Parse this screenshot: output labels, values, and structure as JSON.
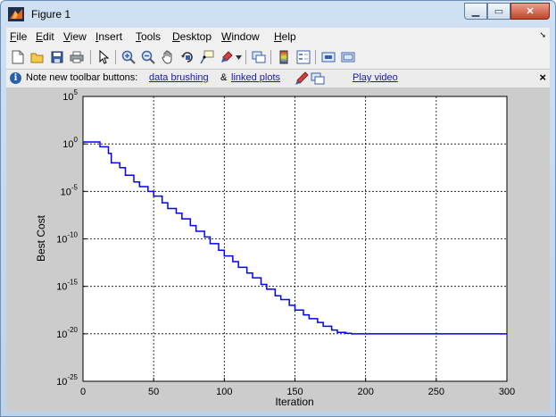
{
  "window": {
    "title": "Figure 1",
    "controls": {
      "minimize_icon": "minimize-icon",
      "maximize_icon": "maximize-icon",
      "close_icon": "close-icon"
    }
  },
  "menubar": {
    "items": [
      {
        "label": "File",
        "underline": "F",
        "rest": "ile"
      },
      {
        "label": "Edit",
        "underline": "E",
        "rest": "dit"
      },
      {
        "label": "View",
        "underline": "V",
        "rest": "iew"
      },
      {
        "label": "Insert",
        "underline": "I",
        "rest": "nsert"
      },
      {
        "label": "Tools",
        "underline": "T",
        "rest": "ools"
      },
      {
        "label": "Desktop",
        "underline": "D",
        "rest": "esktop"
      },
      {
        "label": "Window",
        "underline": "W",
        "rest": "indow"
      },
      {
        "label": "Help",
        "underline": "H",
        "rest": "elp"
      }
    ]
  },
  "toolbar": {
    "buttons": [
      "new-figure-icon",
      "open-file-icon",
      "save-icon",
      "print-icon",
      "edit-plot-arrow-icon",
      "zoom-in-icon",
      "zoom-out-icon",
      "pan-icon",
      "rotate-3d-icon",
      "data-cursor-icon",
      "brush-icon",
      "dropdown-arrow-icon",
      "link-plot-icon",
      "colorbar-icon",
      "legend-icon",
      "hide-plot-tools-icon",
      "show-plot-tools-icon"
    ]
  },
  "notebar": {
    "text": "Note new toolbar buttons:",
    "link1": "data brushing",
    "amp": "&",
    "link2": "linked plots",
    "link3": "Play video"
  },
  "chart_data": {
    "type": "line",
    "title": "",
    "xlabel": "Iteration",
    "ylabel": "Best Cost",
    "xlim": [
      0,
      300
    ],
    "ylim_log10": [
      -25,
      5
    ],
    "yscale": "log",
    "grid": true,
    "xticks": [
      "0",
      "50",
      "100",
      "150",
      "200",
      "250",
      "300"
    ],
    "yticks": [
      {
        "base": "10",
        "exp": "5",
        "value_log10": 5
      },
      {
        "base": "10",
        "exp": "0",
        "value_log10": 0
      },
      {
        "base": "10",
        "exp": "-5",
        "value_log10": -5
      },
      {
        "base": "10",
        "exp": "-10",
        "value_log10": -10
      },
      {
        "base": "10",
        "exp": "-15",
        "value_log10": -15
      },
      {
        "base": "10",
        "exp": "-20",
        "value_log10": -20
      },
      {
        "base": "10",
        "exp": "-25",
        "value_log10": -25
      }
    ],
    "series": [
      {
        "color": "#0000ff",
        "x": [
          0,
          8,
          12,
          18,
          20,
          26,
          30,
          36,
          40,
          46,
          50,
          56,
          60,
          66,
          70,
          76,
          80,
          86,
          90,
          96,
          100,
          106,
          110,
          116,
          120,
          126,
          130,
          136,
          140,
          146,
          150,
          156,
          160,
          166,
          170,
          176,
          180,
          186,
          190,
          200,
          250,
          300
        ],
        "y_log10": [
          0.2,
          0.2,
          -0.3,
          -1.0,
          -2.0,
          -2.5,
          -3.3,
          -4.0,
          -4.5,
          -5.0,
          -5.5,
          -6.2,
          -6.8,
          -7.3,
          -7.9,
          -8.6,
          -9.2,
          -9.8,
          -10.5,
          -11.2,
          -11.8,
          -12.4,
          -13.0,
          -13.6,
          -14.1,
          -14.8,
          -15.3,
          -16.0,
          -16.4,
          -17.0,
          -17.5,
          -18.0,
          -18.4,
          -18.8,
          -19.2,
          -19.6,
          -19.85,
          -19.95,
          -20.0,
          -20.0,
          -20.0,
          -20.0
        ]
      }
    ]
  }
}
